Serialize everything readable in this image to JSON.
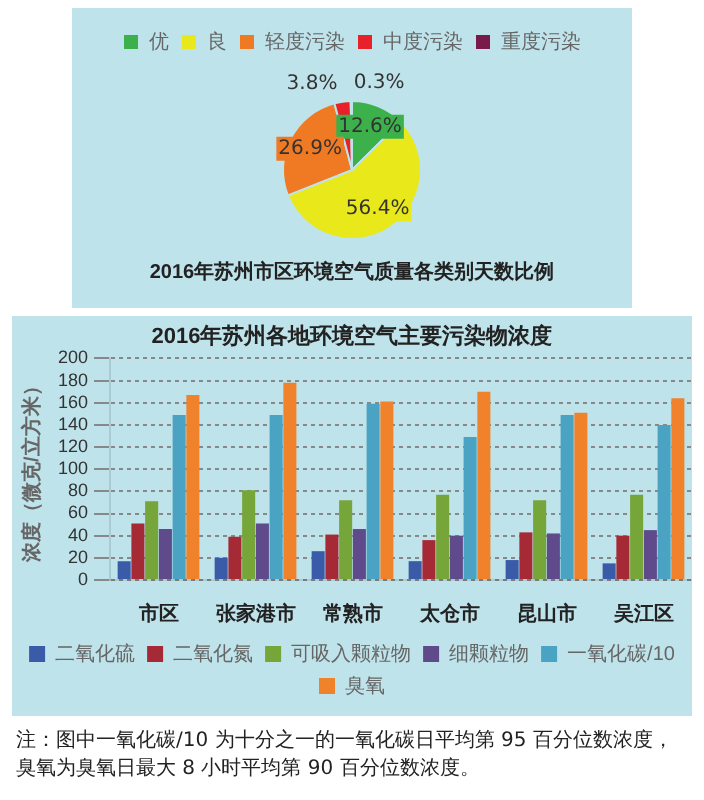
{
  "chart_data": [
    {
      "type": "pie",
      "title": "2016年苏州市区环境空气质量各类别天数比例",
      "categories": [
        "优",
        "良",
        "轻度污染",
        "中度污染",
        "重度污染"
      ],
      "values": [
        12.6,
        56.4,
        26.9,
        3.8,
        0.3
      ],
      "colors": [
        "#3cb04a",
        "#e8e81a",
        "#f07a24",
        "#e8202a",
        "#7a1a4a"
      ],
      "legend": "top",
      "value_labels": [
        "12.6%",
        "56.4%",
        "26.9%",
        "3.8%",
        "0.3%"
      ]
    },
    {
      "type": "bar",
      "title": "2016年苏州各地环境空气主要污染物浓度",
      "ylabel": "浓度（微克/立方米）",
      "categories": [
        "市区",
        "张家港市",
        "常熟市",
        "太仓市",
        "昆山市",
        "吴江区"
      ],
      "series": [
        {
          "name": "二氧化硫",
          "color": "#3a5ba8",
          "values": [
            17,
            20,
            26,
            17,
            18,
            15
          ]
        },
        {
          "name": "二氧化氮",
          "color": "#a52a35",
          "values": [
            51,
            39,
            41,
            36,
            43,
            40
          ]
        },
        {
          "name": "可吸入颗粒物",
          "color": "#76a53a",
          "values": [
            71,
            81,
            72,
            77,
            72,
            77
          ]
        },
        {
          "name": "细颗粒物",
          "color": "#5f4a8b",
          "values": [
            46,
            51,
            46,
            40,
            42,
            45
          ]
        },
        {
          "name": "一氧化碳/10",
          "color": "#4aa3c2",
          "values": [
            149,
            149,
            159,
            129,
            149,
            140
          ]
        },
        {
          "name": "臭氧",
          "color": "#f0822c",
          "values": [
            167,
            178,
            161,
            170,
            151,
            164
          ]
        }
      ],
      "ylim": [
        0,
        200
      ],
      "yticks": [
        0,
        20,
        40,
        60,
        80,
        100,
        120,
        140,
        160,
        180,
        200
      ],
      "grid": "y",
      "legend": "bottom",
      "annotations": [
        "注：图中一氧化碳/10 为十分之一的一氧化碳日平均第 95 百分位数浓度，臭氧为臭氧日最大 8 小时平均第 90 百分位数浓度。"
      ]
    }
  ]
}
